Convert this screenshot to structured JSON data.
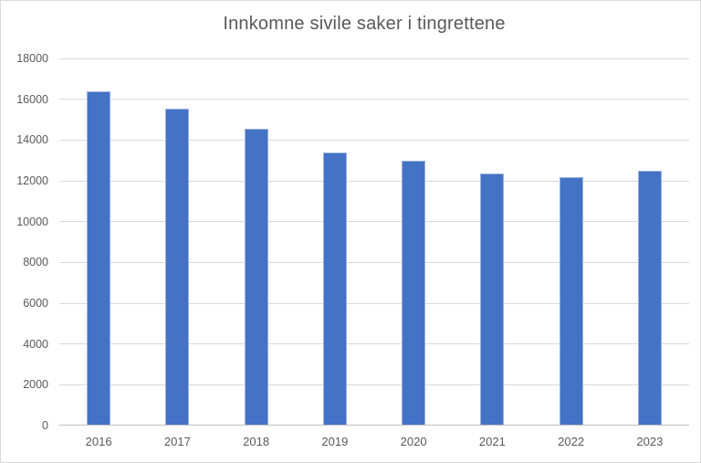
{
  "chart_data": {
    "type": "bar",
    "title": "Innkomne sivile saker i tingrettene",
    "categories": [
      "2016",
      "2017",
      "2018",
      "2019",
      "2020",
      "2021",
      "2022",
      "2023"
    ],
    "values": [
      16350,
      15500,
      14500,
      13350,
      12950,
      12300,
      12150,
      12450
    ],
    "xlabel": "",
    "ylabel": "",
    "ylim": [
      0,
      18000
    ],
    "ytick_step": 2000,
    "ytick_labels": [
      "0",
      "2000",
      "4000",
      "6000",
      "8000",
      "10000",
      "12000",
      "14000",
      "16000",
      "18000"
    ],
    "grid": true,
    "legend": "none",
    "colors": {
      "bar": "#4472C4",
      "gridline": "#D9D9D9",
      "axis_line": "#BFBFBF",
      "text": "#595959",
      "background": "#FFFFFF",
      "frame_border": "#D9D9D9"
    }
  }
}
